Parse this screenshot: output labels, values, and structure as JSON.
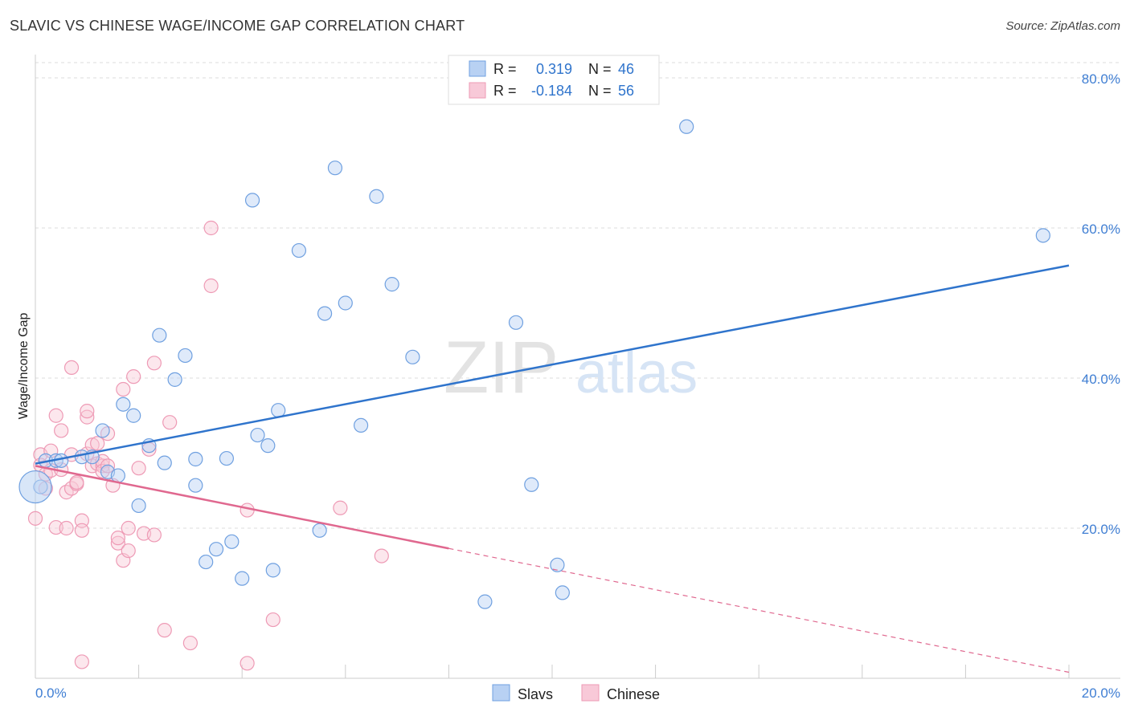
{
  "header": {
    "title": "SLAVIC VS CHINESE WAGE/INCOME GAP CORRELATION CHART",
    "source": "Source: ZipAtlas.com"
  },
  "watermark": {
    "zip": "ZIP",
    "atlas": "atlas"
  },
  "legend_top": [
    {
      "r_label": "R =",
      "r_value": "0.319",
      "n_label": "N =",
      "n_value": "46"
    },
    {
      "r_label": "R =",
      "r_value": "-0.184",
      "n_label": "N =",
      "n_value": "56"
    }
  ],
  "legend_bottom": [
    "Slavs",
    "Chinese"
  ],
  "chart_data": {
    "type": "scatter",
    "title": "SLAVIC VS CHINESE WAGE/INCOME GAP CORRELATION CHART",
    "xlabel": "",
    "ylabel": "Wage/Income Gap",
    "xlim": [
      0,
      20
    ],
    "ylim": [
      0,
      83
    ],
    "x_ticks_labels": [
      "0.0%",
      "20.0%"
    ],
    "y_ticks": [
      20,
      40,
      60,
      80
    ],
    "y_tick_labels": [
      "20.0%",
      "40.0%",
      "60.0%",
      "80.0%"
    ],
    "grid": true,
    "legend_placement": "top-center",
    "series": [
      {
        "name": "Slavs",
        "color": "#6fa0e0",
        "fill": "#b8d1f3",
        "line_color": "#2f74cc",
        "r": 0.319,
        "n": 46,
        "trend": {
          "x0": 0,
          "y0": 28.6,
          "x1": 20,
          "y1": 55.0,
          "solid_to": 20
        },
        "points": [
          [
            0.1,
            25.5
          ],
          [
            0.2,
            29.0
          ],
          [
            0.4,
            29.0
          ],
          [
            0.5,
            29.0
          ],
          [
            0.9,
            29.5
          ],
          [
            1.1,
            29.5
          ],
          [
            1.3,
            33.0
          ],
          [
            1.4,
            27.5
          ],
          [
            1.6,
            27.0
          ],
          [
            1.7,
            36.5
          ],
          [
            1.9,
            35.0
          ],
          [
            2.0,
            23.0
          ],
          [
            2.2,
            31.0
          ],
          [
            2.4,
            45.7
          ],
          [
            2.5,
            28.7
          ],
          [
            2.7,
            39.8
          ],
          [
            2.9,
            43.0
          ],
          [
            3.1,
            29.2
          ],
          [
            3.1,
            25.7
          ],
          [
            3.3,
            15.5
          ],
          [
            3.5,
            17.2
          ],
          [
            3.7,
            29.3
          ],
          [
            3.8,
            18.2
          ],
          [
            4.0,
            13.3
          ],
          [
            4.2,
            63.7
          ],
          [
            4.3,
            32.4
          ],
          [
            4.5,
            31.0
          ],
          [
            4.6,
            14.4
          ],
          [
            4.7,
            35.7
          ],
          [
            5.1,
            57.0
          ],
          [
            5.5,
            19.7
          ],
          [
            5.6,
            48.6
          ],
          [
            5.8,
            68.0
          ],
          [
            6.0,
            50.0
          ],
          [
            6.3,
            33.7
          ],
          [
            6.6,
            64.2
          ],
          [
            6.9,
            52.5
          ],
          [
            7.3,
            42.8
          ],
          [
            8.7,
            10.2
          ],
          [
            9.3,
            47.4
          ],
          [
            9.6,
            25.8
          ],
          [
            10.1,
            15.1
          ],
          [
            10.2,
            11.4
          ],
          [
            12.6,
            73.5
          ],
          [
            19.5,
            59.0
          ],
          [
            0.0,
            25.5
          ]
        ]
      },
      {
        "name": "Chinese",
        "color": "#ee9ab5",
        "fill": "#f8c9d8",
        "line_color": "#e0688f",
        "r": -0.184,
        "n": 56,
        "trend": {
          "x0": 0,
          "y0": 28.3,
          "x1": 20,
          "y1": 0.8,
          "solid_to": 8
        },
        "points": [
          [
            0.0,
            21.3
          ],
          [
            0.1,
            29.8
          ],
          [
            0.1,
            28.4
          ],
          [
            0.2,
            27.2
          ],
          [
            0.2,
            25.3
          ],
          [
            0.3,
            27.7
          ],
          [
            0.3,
            30.3
          ],
          [
            0.4,
            35.0
          ],
          [
            0.4,
            20.1
          ],
          [
            0.5,
            33.0
          ],
          [
            0.5,
            27.8
          ],
          [
            0.6,
            20.0
          ],
          [
            0.6,
            24.8
          ],
          [
            0.7,
            29.8
          ],
          [
            0.7,
            41.4
          ],
          [
            0.7,
            25.3
          ],
          [
            0.8,
            25.9
          ],
          [
            0.8,
            26.1
          ],
          [
            0.9,
            21.0
          ],
          [
            0.9,
            19.7
          ],
          [
            0.9,
            2.2
          ],
          [
            1.0,
            34.8
          ],
          [
            1.0,
            29.9
          ],
          [
            1.0,
            35.6
          ],
          [
            1.1,
            31.1
          ],
          [
            1.1,
            28.3
          ],
          [
            1.2,
            31.3
          ],
          [
            1.2,
            28.6
          ],
          [
            1.3,
            28.3
          ],
          [
            1.3,
            28.9
          ],
          [
            1.3,
            27.6
          ],
          [
            1.4,
            28.3
          ],
          [
            1.4,
            32.6
          ],
          [
            1.5,
            25.7
          ],
          [
            1.6,
            18.0
          ],
          [
            1.6,
            18.7
          ],
          [
            1.7,
            15.7
          ],
          [
            1.7,
            38.5
          ],
          [
            1.8,
            17.0
          ],
          [
            1.8,
            20.0
          ],
          [
            1.9,
            40.2
          ],
          [
            2.0,
            28.0
          ],
          [
            2.1,
            19.3
          ],
          [
            2.2,
            30.5
          ],
          [
            2.3,
            42.0
          ],
          [
            2.3,
            19.1
          ],
          [
            2.5,
            6.4
          ],
          [
            2.6,
            34.1
          ],
          [
            3.0,
            4.7
          ],
          [
            3.4,
            52.3
          ],
          [
            3.4,
            60.0
          ],
          [
            4.1,
            2.0
          ],
          [
            4.1,
            22.4
          ],
          [
            4.6,
            7.8
          ],
          [
            5.9,
            22.7
          ],
          [
            6.7,
            16.3
          ]
        ]
      }
    ]
  }
}
